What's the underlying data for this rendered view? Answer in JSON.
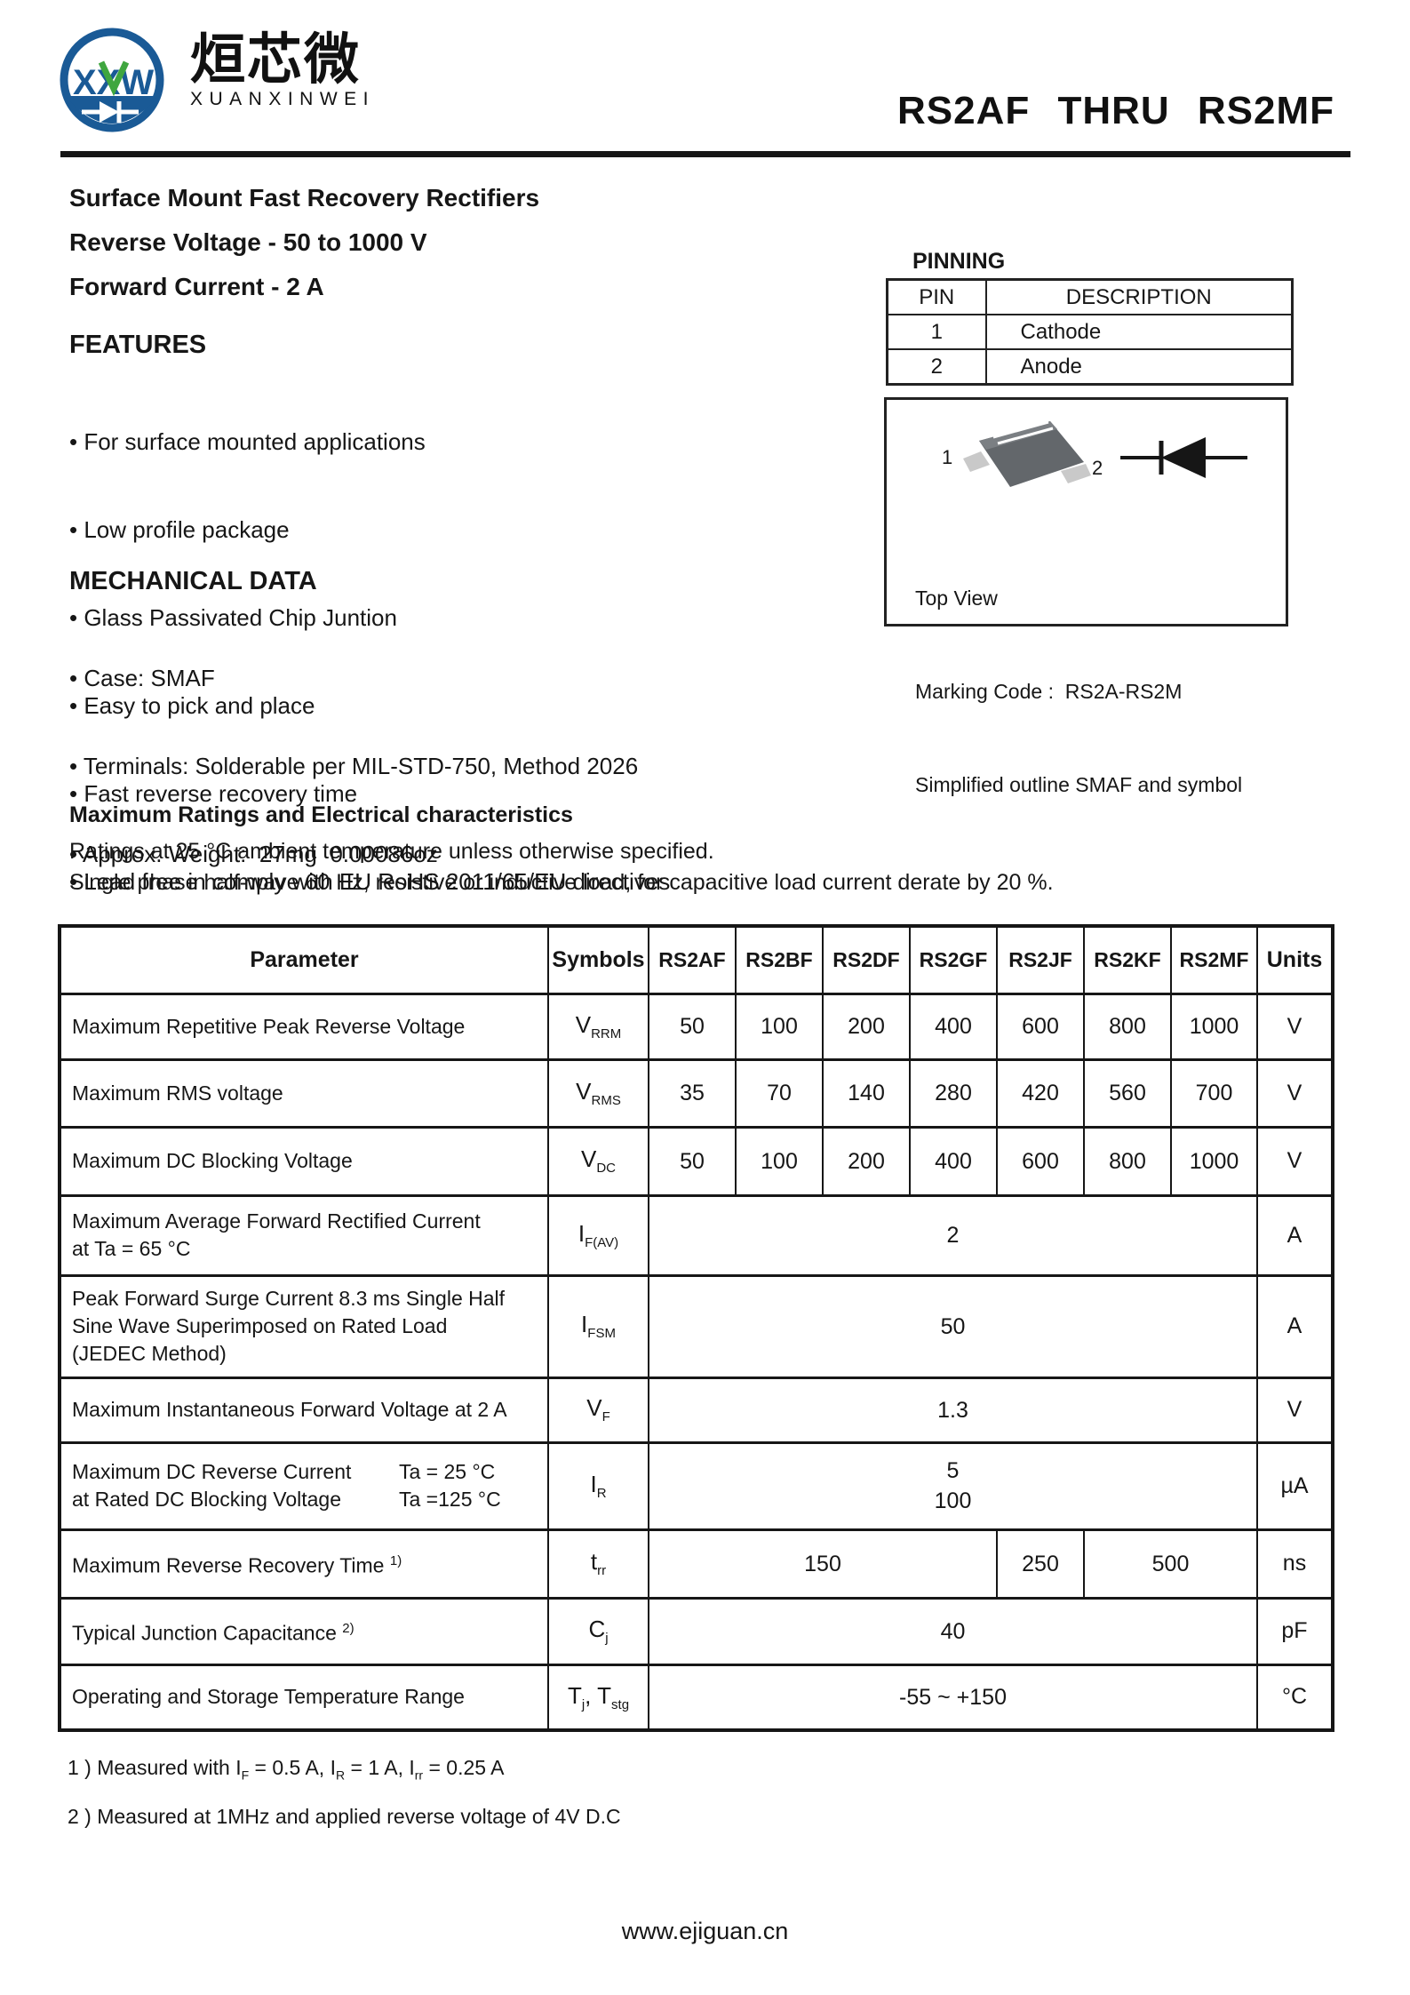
{
  "logo": {
    "monogram": "XXW",
    "cjk": "烜芯微",
    "roman": "XUANXINWEI"
  },
  "title": "RS2AF THRU RS2MF",
  "intro": {
    "line1": "Surface Mount Fast Recovery Rectifiers",
    "line2": "Reverse Voltage - 50 to 1000 V",
    "line3": "Forward Current - 2 A"
  },
  "features": {
    "heading": "FEATURES",
    "items": [
      "For surface mounted applications",
      "Low profile package",
      "Glass Passivated Chip Juntion",
      "Easy to pick and place",
      "Fast reverse recovery time",
      "Lead free in comply with EU RoHS 2011/65/EU directives"
    ]
  },
  "mechanical": {
    "heading": "MECHANICAL DATA",
    "items": [
      "Case: SMAF",
      "Terminals: Solderable per MIL-STD-750, Method 2026",
      "Approx. Weight:  27mg  0.00086oz"
    ]
  },
  "pinning": {
    "heading": "PINNING",
    "col_pin": "PIN",
    "col_desc": "DESCRIPTION",
    "rows": [
      {
        "pin": "1",
        "desc": "Cathode"
      },
      {
        "pin": "2",
        "desc": "Anode"
      }
    ]
  },
  "package": {
    "pin1": "1",
    "pin2": "2",
    "line1": "Top View",
    "line2": "Marking Code :  RS2A-RS2M",
    "line3": "Simplified outline SMAF and symbol"
  },
  "ratings": {
    "heading": "Maximum Ratings and Electrical characteristics",
    "note1": "Ratings at 25 °C ambient temperature unless otherwise specified.",
    "note2": "Single phase half-wave 60 Hz, resistive or inductive load, for capacitive load current derate by 20 %."
  },
  "table": {
    "headers": [
      "Parameter",
      "Symbols",
      "RS2AF",
      "RS2BF",
      "RS2DF",
      "RS2GF",
      "RS2JF",
      "RS2KF",
      "RS2MF",
      "Units"
    ],
    "rows": [
      {
        "param": [
          {
            "text": "Maximum Repetitive Peak Reverse Voltage"
          }
        ],
        "sym": [
          {
            "t": "V",
            "s": "RRM"
          }
        ],
        "vals": [
          {
            "v": "50"
          },
          {
            "v": "100"
          },
          {
            "v": "200"
          },
          {
            "v": "400"
          },
          {
            "v": "600"
          },
          {
            "v": "800"
          },
          {
            "v": "1000"
          }
        ],
        "unit": "V"
      },
      {
        "param": [
          {
            "text": "Maximum RMS voltage"
          }
        ],
        "sym": [
          {
            "t": "V",
            "s": "RMS"
          }
        ],
        "vals": [
          {
            "v": "35"
          },
          {
            "v": "70"
          },
          {
            "v": "140"
          },
          {
            "v": "280"
          },
          {
            "v": "420"
          },
          {
            "v": "560"
          },
          {
            "v": "700"
          }
        ],
        "unit": "V"
      },
      {
        "param": [
          {
            "text": "Maximum DC Blocking Voltage"
          }
        ],
        "sym": [
          {
            "t": "V",
            "s": "DC"
          }
        ],
        "vals": [
          {
            "v": "50"
          },
          {
            "v": "100"
          },
          {
            "v": "200"
          },
          {
            "v": "400"
          },
          {
            "v": "600"
          },
          {
            "v": "800"
          },
          {
            "v": "1000"
          }
        ],
        "unit": "V"
      },
      {
        "param": [
          {
            "text": "Maximum Average Forward Rectified Current"
          },
          {
            "text": "at Ta = 65 °C"
          }
        ],
        "sym": [
          {
            "t": "I",
            "s": "F(AV)"
          }
        ],
        "vals": [
          {
            "v": "2",
            "span": 7
          }
        ],
        "unit": "A"
      },
      {
        "param": [
          {
            "text": "Peak Forward Surge Current 8.3 ms Single Half"
          },
          {
            "text": "Sine Wave Superimposed on Rated Load"
          },
          {
            "text": "(JEDEC Method)"
          }
        ],
        "sym": [
          {
            "t": "I",
            "s": "FSM"
          }
        ],
        "vals": [
          {
            "v": "50",
            "span": 7
          }
        ],
        "unit": "A"
      },
      {
        "param": [
          {
            "text": "Maximum Instantaneous Forward Voltage at 2 A"
          }
        ],
        "sym": [
          {
            "t": "V",
            "s": "F"
          }
        ],
        "vals": [
          {
            "v": "1.3",
            "span": 7
          }
        ],
        "unit": "V"
      },
      {
        "param": [
          {
            "l": "Maximum DC Reverse Current",
            "r": "Ta = 25 °C"
          },
          {
            "l": "at Rated DC Blocking Voltage",
            "r": "Ta =125 °C"
          }
        ],
        "sym": [
          {
            "t": "I",
            "s": "R"
          }
        ],
        "vals": [
          {
            "v": "5\n100",
            "span": 7
          }
        ],
        "unit": "µA"
      },
      {
        "param": [
          {
            "text": "Maximum Reverse Recovery Time ",
            "sup": "1)"
          }
        ],
        "sym": [
          {
            "t": "t",
            "s": "rr"
          }
        ],
        "vals": [
          {
            "v": "150",
            "span": 4
          },
          {
            "v": "250",
            "span": 1
          },
          {
            "v": "500",
            "span": 2
          }
        ],
        "unit": "ns"
      },
      {
        "param": [
          {
            "text": "Typical Junction Capacitance ",
            "sup": "2)"
          }
        ],
        "sym": [
          {
            "t": "C",
            "s": "j"
          }
        ],
        "vals": [
          {
            "v": "40",
            "span": 7
          }
        ],
        "unit": "pF"
      },
      {
        "param": [
          {
            "text": "Operating and Storage Temperature Range"
          }
        ],
        "sym": [
          {
            "t": "T",
            "s": "j"
          },
          {
            "t": ", T",
            "s": "stg"
          }
        ],
        "vals": [
          {
            "v": "-55 ~ +150",
            "span": 7
          }
        ],
        "unit": "°C"
      }
    ]
  },
  "footnotes": [
    [
      {
        "t": "1 ) Measured with I"
      },
      {
        "s": "F"
      },
      {
        "t": " = 0.5 A, I"
      },
      {
        "s": "R"
      },
      {
        "t": " = 1 A, I"
      },
      {
        "s": "rr"
      },
      {
        "t": " = 0.25 A"
      }
    ],
    [
      {
        "t": "2 ) Measured at 1MHz and applied reverse voltage of 4V D.C"
      }
    ]
  ],
  "footer": {
    "site": "www.ejiguan.cn"
  }
}
